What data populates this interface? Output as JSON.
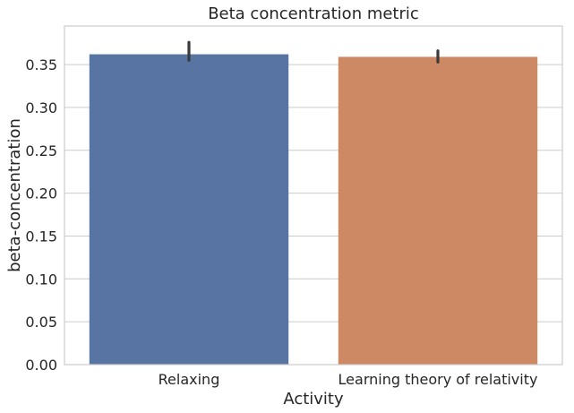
{
  "chart_data": {
    "type": "bar",
    "title": "Beta concentration metric",
    "xlabel": "Activity",
    "ylabel": "beta-concentration",
    "categories": [
      "Relaxing",
      "Learning theory of relativity"
    ],
    "values": [
      0.362,
      0.359
    ],
    "error_bars": [
      {
        "low": 0.355,
        "high": 0.376
      },
      {
        "low": 0.353,
        "high": 0.366
      }
    ],
    "ylim": [
      0,
      0.395
    ],
    "yticks": [
      0.0,
      0.05,
      0.1,
      0.15,
      0.2,
      0.25,
      0.3,
      0.35
    ],
    "ytick_labels": [
      "0.00",
      "0.05",
      "0.10",
      "0.15",
      "0.20",
      "0.25",
      "0.30",
      "0.35"
    ],
    "grid": "horizontal",
    "colors": [
      "#5874a3",
      "#cd8963"
    ],
    "frame_color": "#cccccc",
    "grid_color": "#cccccc",
    "error_bar_color": "#3a3a3a"
  }
}
